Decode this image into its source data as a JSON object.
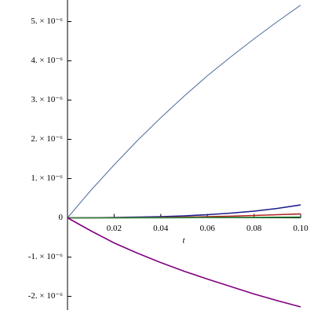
{
  "chart_data": {
    "type": "line",
    "x_label": "t",
    "x": [
      0,
      0.01,
      0.02,
      0.03,
      0.04,
      0.05,
      0.06,
      0.07,
      0.08,
      0.09,
      0.1
    ],
    "series": [
      {
        "color": "#4a6b9a",
        "values": [
          0,
          7e-07,
          1.35e-06,
          1.97e-06,
          2.55e-06,
          3.1e-06,
          3.62e-06,
          4.1e-06,
          4.56e-06,
          5e-06,
          5.42e-06
        ]
      },
      {
        "color": "#1c1c8c",
        "values": [
          0,
          2e-09,
          8e-09,
          1.8e-08,
          3e-08,
          5e-08,
          8e-08,
          1.2e-07,
          1.7e-07,
          2.4e-07,
          3.3e-07
        ]
      },
      {
        "color": "#b22222",
        "values": [
          0,
          0,
          2e-09,
          5e-09,
          1e-08,
          1.8e-08,
          2.8e-08,
          4.2e-08,
          6e-08,
          8e-08,
          1e-07
        ]
      },
      {
        "color": "#2e8b3a",
        "values": [
          0,
          0,
          0,
          1e-09,
          2e-09,
          4e-09,
          6e-09,
          9e-09,
          1.2e-08,
          1.6e-08,
          2e-08
        ]
      },
      {
        "color": "#800080",
        "values": [
          0,
          -3.3e-07,
          -6.4e-07,
          -9e-07,
          -1.14e-06,
          -1.36e-06,
          -1.56e-06,
          -1.75e-06,
          -1.94e-06,
          -2.11e-06,
          -2.27e-06
        ]
      }
    ],
    "xlim": [
      0,
      0.1
    ],
    "xticks": [
      0.02,
      0.04,
      0.06,
      0.08,
      {
        "value": 0.1,
        "label": "0.10"
      }
    ],
    "ylim": [
      -2.35e-06,
      5.55e-06
    ],
    "yticks": [
      {
        "value": -2e-06,
        "label": "-2. × 10⁻⁶"
      },
      {
        "value": -1e-06,
        "label": "-1. × 10⁻⁶"
      },
      0,
      {
        "value": 1e-06,
        "label": "1. × 10⁻⁶"
      },
      {
        "value": 2e-06,
        "label": "2. × 10⁻⁶"
      },
      {
        "value": 3e-06,
        "label": "3. × 10⁻⁶"
      },
      {
        "value": 4e-06,
        "label": "4. × 10⁻⁶"
      },
      {
        "value": 5e-06,
        "label": "5. × 10⁻⁶"
      }
    ]
  }
}
